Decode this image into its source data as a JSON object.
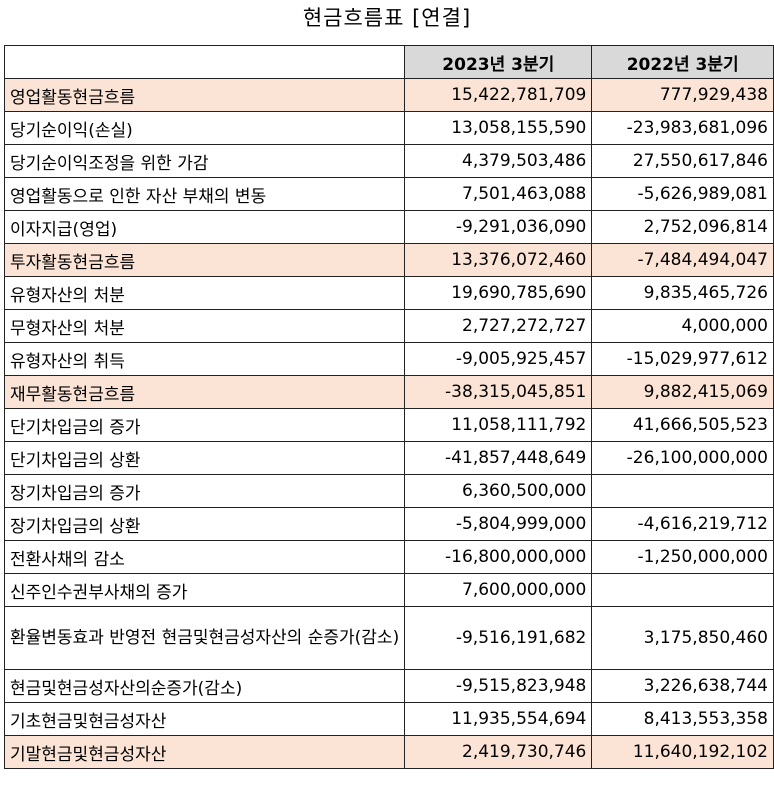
{
  "title": "현금흐름표 [연결]",
  "headers": [
    "",
    "2023년 3분기",
    "2022년 3분기"
  ],
  "rows": [
    {
      "label": "영업활동현금흐름",
      "v1": "15,422,781,709",
      "v2": "777,929,438",
      "hl": true,
      "indent": false
    },
    {
      "label": "당기순이익(손실)",
      "v1": "13,058,155,590",
      "v2": "-23,983,681,096",
      "hl": false,
      "indent": true
    },
    {
      "label": "당기순이익조정을 위한 가감",
      "v1": "4,379,503,486",
      "v2": "27,550,617,846",
      "hl": false,
      "indent": true
    },
    {
      "label": "영업활동으로 인한 자산 부채의 변동",
      "v1": "7,501,463,088",
      "v2": "-5,626,989,081",
      "hl": false,
      "indent": true
    },
    {
      "label": "이자지급(영업)",
      "v1": "-9,291,036,090",
      "v2": "2,752,096,814",
      "hl": false,
      "indent": true
    },
    {
      "label": "투자활동현금흐름",
      "v1": "13,376,072,460",
      "v2": "-7,484,494,047",
      "hl": true,
      "indent": false
    },
    {
      "label": "유형자산의 처분",
      "v1": "19,690,785,690",
      "v2": "9,835,465,726",
      "hl": false,
      "indent": true
    },
    {
      "label": "무형자산의 처분",
      "v1": "2,727,272,727",
      "v2": "4,000,000",
      "hl": false,
      "indent": true
    },
    {
      "label": "유형자산의 취득",
      "v1": "-9,005,925,457",
      "v2": "-15,029,977,612",
      "hl": false,
      "indent": true
    },
    {
      "label": "재무활동현금흐름",
      "v1": "-38,315,045,851",
      "v2": "9,882,415,069",
      "hl": true,
      "indent": false
    },
    {
      "label": "단기차입금의 증가",
      "v1": "11,058,111,792",
      "v2": "41,666,505,523",
      "hl": false,
      "indent": true
    },
    {
      "label": "단기차입금의 상환",
      "v1": "-41,857,448,649",
      "v2": "-26,100,000,000",
      "hl": false,
      "indent": true
    },
    {
      "label": "장기차입금의 증가",
      "v1": "6,360,500,000",
      "v2": "",
      "hl": false,
      "indent": true
    },
    {
      "label": "장기차입금의 상환",
      "v1": "-5,804,999,000",
      "v2": "-4,616,219,712",
      "hl": false,
      "indent": true
    },
    {
      "label": "전환사채의 감소",
      "v1": "-16,800,000,000",
      "v2": "-1,250,000,000",
      "hl": false,
      "indent": true
    },
    {
      "label": "신주인수권부사채의 증가",
      "v1": "7,600,000,000",
      "v2": "",
      "hl": false,
      "indent": true
    },
    {
      "label": "환율변동효과 반영전 현금및현금성자산의 순증가(감소)",
      "v1": "-9,516,191,682",
      "v2": "3,175,850,460",
      "hl": false,
      "indent": false,
      "wrap": true
    },
    {
      "label": "현금및현금성자산의순증가(감소)",
      "v1": "-9,515,823,948",
      "v2": "3,226,638,744",
      "hl": false,
      "indent": false
    },
    {
      "label": "기초현금및현금성자산",
      "v1": "11,935,554,694",
      "v2": "8,413,553,358",
      "hl": false,
      "indent": false
    },
    {
      "label": "기말현금및현금성자산",
      "v1": "2,419,730,746",
      "v2": "11,640,192,102",
      "hl": true,
      "indent": false
    }
  ]
}
